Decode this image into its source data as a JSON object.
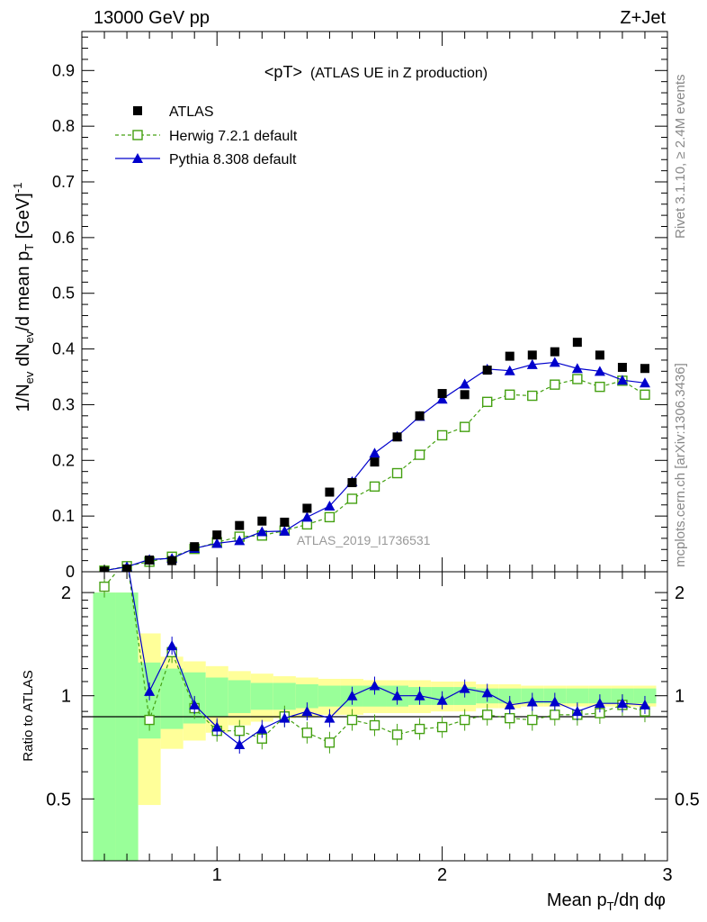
{
  "header": {
    "left": "13000 GeV pp",
    "right": "Z+Jet"
  },
  "side_labels": {
    "rivet": "Rivet 3.1.10, ≥ 2.4M events",
    "mcplots": "mcplots.cern.ch [arXiv:1306.3436]"
  },
  "watermark": "ATLAS_2019_I1736531",
  "chart_data": {
    "type": "scatter",
    "title": "<pT>",
    "subtitle": "(ATLAS UE in Z production)",
    "ylabel": "1/N_ev dN_ev/d mean p_T [GeV]^-1",
    "xlabel": "Mean p_T/dη dφ",
    "ratio_ylabel": "Ratio to ATLAS",
    "xlim": [
      0.4,
      3.0
    ],
    "ylim": [
      0,
      0.97
    ],
    "ratio_ylim": [
      0.33,
      2.3
    ],
    "legend_position": "top-left",
    "main_y_ticks": [
      "0",
      "0.1",
      "0.2",
      "0.3",
      "0.4",
      "0.5",
      "0.6",
      "0.7",
      "0.8",
      "0.9"
    ],
    "x_ticks": [
      "1",
      "2",
      "3"
    ],
    "ratio_y_ticks": [
      "0.5",
      "1",
      "2"
    ],
    "series": [
      {
        "name": "ATLAS",
        "color": "#000000",
        "x": [
          0.5,
          0.6,
          0.7,
          0.8,
          0.9,
          1.0,
          1.1,
          1.2,
          1.3,
          1.4,
          1.5,
          1.6,
          1.7,
          1.8,
          1.9,
          2.0,
          2.1,
          2.2,
          2.3,
          2.4,
          2.5,
          2.6,
          2.7,
          2.8,
          2.9
        ],
        "y": [
          0.001,
          0.005,
          0.021,
          0.02,
          0.045,
          0.066,
          0.083,
          0.091,
          0.089,
          0.114,
          0.143,
          0.16,
          0.197,
          0.242,
          0.28,
          0.32,
          0.318,
          0.362,
          0.387,
          0.389,
          0.395,
          0.412,
          0.389,
          0.367,
          0.365
        ]
      },
      {
        "name": "Herwig 7.2.1 default",
        "color": "#44a011",
        "x": [
          0.5,
          0.6,
          0.7,
          0.8,
          0.9,
          1.0,
          1.1,
          1.2,
          1.3,
          1.4,
          1.5,
          1.6,
          1.7,
          1.8,
          1.9,
          2.0,
          2.1,
          2.2,
          2.3,
          2.4,
          2.5,
          2.6,
          2.7,
          2.8,
          2.9
        ],
        "y": [
          0.002,
          0.01,
          0.018,
          0.027,
          0.041,
          0.053,
          0.063,
          0.065,
          0.074,
          0.085,
          0.098,
          0.131,
          0.153,
          0.177,
          0.21,
          0.245,
          0.26,
          0.305,
          0.318,
          0.316,
          0.336,
          0.346,
          0.332,
          0.343,
          0.318
        ],
        "ratio": [
          2.08,
          2.5,
          0.85,
          1.34,
          0.92,
          0.79,
          0.79,
          0.75,
          0.87,
          0.78,
          0.73,
          0.85,
          0.82,
          0.77,
          0.8,
          0.81,
          0.85,
          0.88,
          0.86,
          0.85,
          0.88,
          0.88,
          0.89,
          0.94,
          0.9
        ]
      },
      {
        "name": "Pythia 8.308 default",
        "color": "#0000cc",
        "x": [
          0.5,
          0.6,
          0.7,
          0.8,
          0.9,
          1.0,
          1.1,
          1.2,
          1.3,
          1.4,
          1.5,
          1.6,
          1.7,
          1.8,
          1.9,
          2.0,
          2.1,
          2.2,
          2.3,
          2.4,
          2.5,
          2.6,
          2.7,
          2.8,
          2.9
        ],
        "y": [
          0.002,
          0.009,
          0.022,
          0.024,
          0.042,
          0.051,
          0.056,
          0.072,
          0.073,
          0.098,
          0.118,
          0.162,
          0.213,
          0.243,
          0.279,
          0.31,
          0.337,
          0.364,
          0.361,
          0.372,
          0.376,
          0.365,
          0.36,
          0.344,
          0.339
        ],
        "ratio": [
          2.5,
          2.5,
          1.03,
          1.4,
          0.94,
          0.81,
          0.72,
          0.8,
          0.86,
          0.9,
          0.86,
          1.0,
          1.07,
          1.0,
          1.0,
          0.97,
          1.05,
          1.02,
          0.94,
          0.96,
          0.96,
          0.9,
          0.95,
          0.95,
          0.94
        ]
      }
    ],
    "ratio_bands": {
      "edges": [
        0.45,
        0.55,
        0.65,
        0.75,
        0.85,
        0.95,
        1.05,
        1.15,
        1.25,
        1.35,
        1.45,
        1.55,
        1.65,
        1.75,
        1.85,
        1.95,
        2.05,
        2.15,
        2.25,
        2.35,
        2.45,
        2.55,
        2.65,
        2.75,
        2.85,
        2.95
      ],
      "yellow_half_width": [
        1.0,
        1.0,
        0.52,
        0.3,
        0.26,
        0.22,
        0.18,
        0.16,
        0.14,
        0.13,
        0.12,
        0.12,
        0.11,
        0.11,
        0.11,
        0.1,
        0.1,
        0.08,
        0.08,
        0.07,
        0.07,
        0.07,
        0.07,
        0.07,
        0.07
      ],
      "green_half_width": [
        1.0,
        1.0,
        0.25,
        0.2,
        0.17,
        0.13,
        0.11,
        0.09,
        0.09,
        0.08,
        0.07,
        0.07,
        0.07,
        0.07,
        0.06,
        0.06,
        0.06,
        0.05,
        0.05,
        0.05,
        0.05,
        0.05,
        0.05,
        0.05,
        0.05
      ],
      "yellow_color": "#ffff99",
      "green_color": "#99ff99"
    }
  }
}
